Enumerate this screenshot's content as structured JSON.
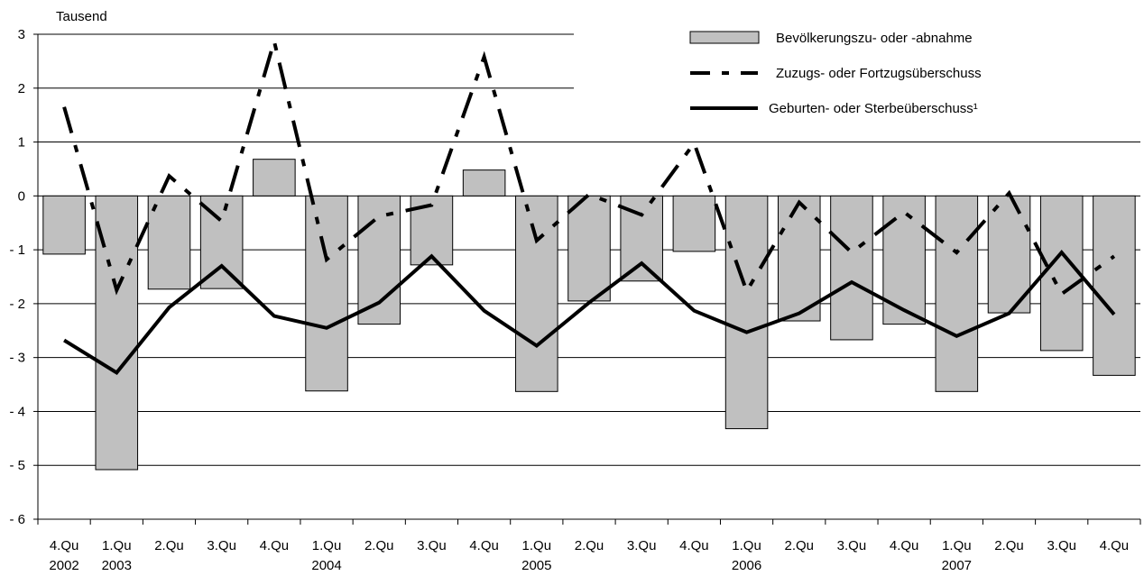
{
  "chart_data": {
    "type": "bar",
    "unit_label": "Tausend",
    "ylim": [
      -6,
      3
    ],
    "yticks": [
      3,
      2,
      1,
      0,
      -1,
      -2,
      -3,
      -4,
      -5,
      -6
    ],
    "ytick_labels": [
      "3",
      "2",
      "1",
      "0",
      "- 1",
      "- 2",
      "- 3",
      "- 4",
      "- 5",
      "- 6"
    ],
    "grid": true,
    "legend_position": "top-right",
    "categories": [
      "4.Qu",
      "1.Qu",
      "2.Qu",
      "3.Qu",
      "4.Qu",
      "1.Qu",
      "2.Qu",
      "3.Qu",
      "4.Qu",
      "1.Qu",
      "2.Qu",
      "3.Qu",
      "4.Qu",
      "1.Qu",
      "2.Qu",
      "3.Qu",
      "4.Qu",
      "1.Qu",
      "2.Qu",
      "3.Qu",
      "4.Qu"
    ],
    "year_labels": [
      "2002",
      "2003",
      "",
      "",
      "",
      "2004",
      "",
      "",
      "",
      "2005",
      "",
      "",
      "",
      "2006",
      "",
      "",
      "",
      "2007",
      "",
      "",
      ""
    ],
    "series": [
      {
        "name": "Bevölkerungszu- oder -abnahme",
        "kind": "bar",
        "color": "#c0c0c0",
        "values": [
          -1.08,
          -5.08,
          -1.73,
          -1.72,
          0.68,
          -3.62,
          -2.38,
          -1.28,
          0.48,
          -3.63,
          -1.95,
          -1.58,
          -1.03,
          -4.32,
          -2.32,
          -2.67,
          -2.38,
          -3.63,
          -2.17,
          -2.87,
          -3.33
        ]
      },
      {
        "name": "Zuzugs- oder Fortzugsüberschuss",
        "kind": "line-dashed",
        "color": "#000000",
        "values": [
          1.65,
          -1.75,
          0.37,
          -0.47,
          2.87,
          -1.18,
          -0.38,
          -0.17,
          2.58,
          -0.83,
          0.03,
          -0.35,
          0.98,
          -1.77,
          -0.12,
          -1.05,
          -0.3,
          -1.05,
          0.05,
          -1.82,
          -1.12
        ]
      },
      {
        "name": "Geburten- oder Sterbeüberschuss¹",
        "kind": "line",
        "color": "#000000",
        "values": [
          -2.68,
          -3.28,
          -2.07,
          -1.3,
          -2.23,
          -2.45,
          -1.98,
          -1.12,
          -2.13,
          -2.78,
          -1.98,
          -1.25,
          -2.13,
          -2.53,
          -2.18,
          -1.6,
          -2.12,
          -2.6,
          -2.18,
          -1.05,
          -2.2
        ]
      }
    ]
  }
}
